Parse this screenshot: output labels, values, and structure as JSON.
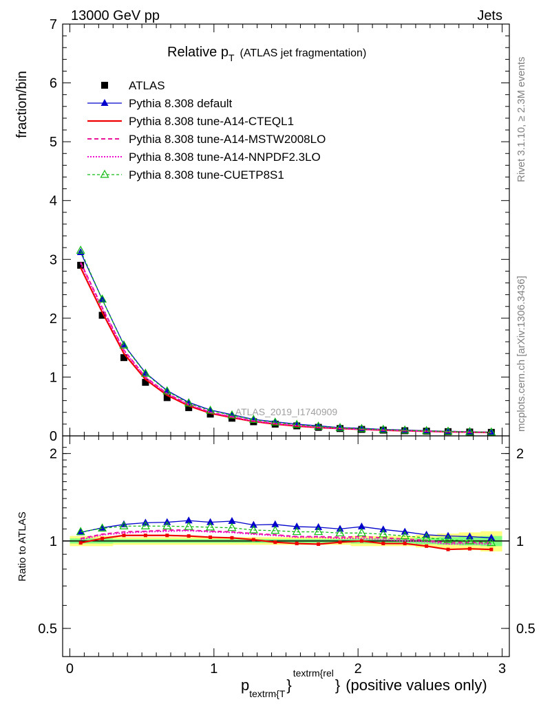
{
  "header": {
    "left": "13000 GeV pp",
    "right": "Jets"
  },
  "title": {
    "main": "Relative p",
    "main_sub": "T",
    "paren": "(ATLAS jet fragmentation)"
  },
  "side_labels": {
    "rivet": "Rivet 3.1.10, ≥ 2.3M events",
    "mcplots": "mcplots.cern.ch [arXiv:1306.3436]"
  },
  "watermark": "ATLAS_2019_I1740909",
  "colors": {
    "atlas": "#000000",
    "default": "#0000cc",
    "cteql1": "#ee0000",
    "mstw": "#ee1199",
    "nnpdf": "#ee11cc",
    "cuetp8s1": "#11bb11",
    "band_outer": "#ffff80",
    "band_inner": "#80ff80"
  },
  "chart_data": [
    {
      "type": "line",
      "panel": "main",
      "ylabel": "fraction/bin",
      "ylim": [
        0,
        7
      ],
      "xlim": [
        -0.05,
        3.05
      ],
      "yticks": [
        "0",
        "1",
        "2",
        "3",
        "4",
        "5",
        "6",
        "7"
      ],
      "x": [
        0.075,
        0.225,
        0.375,
        0.525,
        0.675,
        0.825,
        0.975,
        1.125,
        1.275,
        1.425,
        1.575,
        1.725,
        1.875,
        2.025,
        2.175,
        2.325,
        2.475,
        2.625,
        2.775,
        2.925
      ],
      "series": [
        {
          "name": "ATLAS",
          "key": "atlas",
          "style": "data",
          "values": [
            2.9,
            2.05,
            1.33,
            0.91,
            0.65,
            0.48,
            0.37,
            0.3,
            0.24,
            0.2,
            0.17,
            0.145,
            0.125,
            0.11,
            0.098,
            0.088,
            0.08,
            0.072,
            0.066,
            0.06
          ]
        },
        {
          "name": "Pythia 8.308 default",
          "key": "default",
          "style": "solid-tri",
          "values": [
            3.12,
            2.32,
            1.55,
            1.07,
            0.77,
            0.57,
            0.44,
            0.36,
            0.28,
            0.24,
            0.2,
            0.17,
            0.14,
            0.13,
            0.11,
            0.1,
            0.088,
            0.078,
            0.071,
            0.064
          ]
        },
        {
          "name": "Pythia 8.308 tune-A14-CTEQL1",
          "key": "cteql1",
          "style": "solid",
          "values": [
            2.86,
            2.1,
            1.4,
            0.96,
            0.69,
            0.51,
            0.385,
            0.31,
            0.245,
            0.2,
            0.166,
            0.142,
            0.124,
            0.11,
            0.096,
            0.086,
            0.078,
            0.068,
            0.062,
            0.057
          ]
        },
        {
          "name": "Pythia 8.308 tune-A14-MSTW2008LO",
          "key": "mstw",
          "style": "dashed",
          "values": [
            2.95,
            2.18,
            1.46,
            1.0,
            0.72,
            0.535,
            0.4,
            0.325,
            0.255,
            0.21,
            0.175,
            0.148,
            0.128,
            0.113,
            0.1,
            0.09,
            0.08,
            0.07,
            0.065,
            0.059
          ]
        },
        {
          "name": "Pythia 8.308 tune-A14-NNPDF2.3LO",
          "key": "nnpdf",
          "style": "dotted",
          "values": [
            2.93,
            2.16,
            1.45,
            0.99,
            0.715,
            0.53,
            0.4,
            0.322,
            0.253,
            0.208,
            0.174,
            0.147,
            0.127,
            0.112,
            0.099,
            0.089,
            0.08,
            0.07,
            0.064,
            0.058
          ]
        },
        {
          "name": "Pythia 8.308 tune-CUETP8S1",
          "key": "cuetp8s1",
          "style": "dashed-opentri",
          "values": [
            3.15,
            2.32,
            1.54,
            1.06,
            0.76,
            0.555,
            0.43,
            0.35,
            0.275,
            0.23,
            0.19,
            0.16,
            0.137,
            0.12,
            0.106,
            0.095,
            0.085,
            0.075,
            0.068,
            0.061
          ]
        }
      ]
    },
    {
      "type": "line",
      "panel": "ratio",
      "ylabel": "Ratio to ATLAS",
      "xlabel": "(positive values only)",
      "xlabel_p": "p",
      "xlabel_sub": "textrm{T",
      "xlabel_sup": "textrm{rel",
      "xlabel_brace": "}",
      "xlabel_close": "}",
      "ylim": [
        0.4,
        2.3
      ],
      "yscale": "log",
      "xlim": [
        -0.05,
        3.05
      ],
      "xticks": [
        "0",
        "1",
        "2",
        "3"
      ],
      "yticks": [
        "0.5",
        "1",
        "2"
      ],
      "x": [
        0.075,
        0.225,
        0.375,
        0.525,
        0.675,
        0.825,
        0.975,
        1.125,
        1.275,
        1.425,
        1.575,
        1.725,
        1.875,
        2.025,
        2.175,
        2.325,
        2.475,
        2.625,
        2.775,
        2.925
      ],
      "band_outer": [
        0.04,
        0.04,
        0.03,
        0.03,
        0.03,
        0.03,
        0.03,
        0.03,
        0.03,
        0.03,
        0.03,
        0.03,
        0.03,
        0.04,
        0.04,
        0.04,
        0.05,
        0.06,
        0.07,
        0.08
      ],
      "band_inner": [
        0.02,
        0.02,
        0.015,
        0.015,
        0.015,
        0.015,
        0.015,
        0.015,
        0.015,
        0.015,
        0.015,
        0.015,
        0.015,
        0.02,
        0.02,
        0.02,
        0.025,
        0.03,
        0.035,
        0.04
      ],
      "series": [
        {
          "name": "Pythia 8.308 default",
          "key": "default",
          "style": "solid-tri",
          "values": [
            1.07,
            1.11,
            1.14,
            1.155,
            1.16,
            1.175,
            1.16,
            1.17,
            1.135,
            1.14,
            1.12,
            1.115,
            1.1,
            1.12,
            1.095,
            1.075,
            1.05,
            1.04,
            1.035,
            1.025
          ]
        },
        {
          "name": "Pythia 8.308 tune-A14-CTEQL1",
          "key": "cteql1",
          "style": "solid",
          "values": [
            0.985,
            1.02,
            1.045,
            1.045,
            1.045,
            1.04,
            1.03,
            1.025,
            1.01,
            0.99,
            0.98,
            0.975,
            0.99,
            1.0,
            0.98,
            0.98,
            0.96,
            0.935,
            0.94,
            0.935
          ]
        },
        {
          "name": "Pythia 8.308 tune-A14-MSTW2008LO",
          "key": "mstw",
          "style": "dashed",
          "values": [
            1.02,
            1.055,
            1.075,
            1.08,
            1.09,
            1.09,
            1.08,
            1.075,
            1.06,
            1.05,
            1.035,
            1.035,
            1.03,
            1.035,
            1.025,
            1.015,
            1.005,
            0.985,
            0.99,
            0.985
          ]
        },
        {
          "name": "Pythia 8.308 tune-A14-NNPDF2.3LO",
          "key": "nnpdf",
          "style": "dotted",
          "values": [
            1.01,
            1.05,
            1.065,
            1.075,
            1.08,
            1.085,
            1.075,
            1.07,
            1.055,
            1.045,
            1.03,
            1.03,
            1.02,
            1.02,
            1.01,
            1.0,
            0.995,
            0.975,
            0.98,
            0.975
          ]
        },
        {
          "name": "Pythia 8.308 tune-CUETP8S1",
          "key": "cuetp8s1",
          "style": "dashed-opentri",
          "values": [
            1.075,
            1.105,
            1.125,
            1.125,
            1.125,
            1.12,
            1.115,
            1.11,
            1.09,
            1.085,
            1.075,
            1.075,
            1.065,
            1.065,
            1.055,
            1.04,
            1.025,
            1.01,
            1.0,
            0.985
          ]
        }
      ]
    }
  ]
}
